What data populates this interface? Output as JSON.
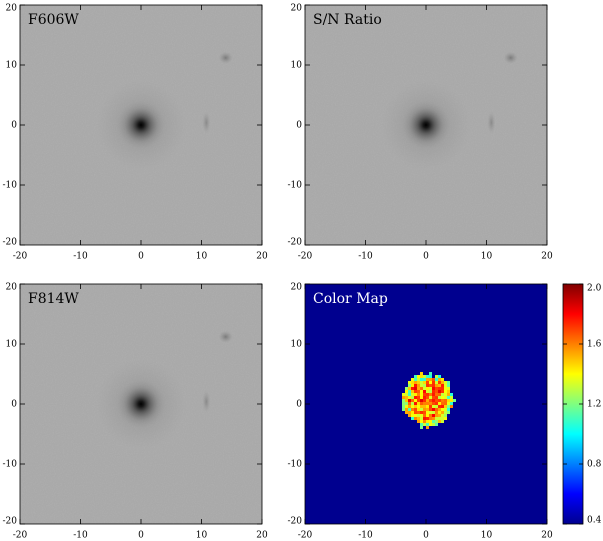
{
  "chart_data": [
    {
      "type": "image",
      "title": "F606W",
      "xlim": [
        -20,
        20
      ],
      "ylim": [
        -20,
        20
      ],
      "xticks": [
        -20,
        -10,
        0,
        10,
        20
      ],
      "yticks": [
        -20,
        -10,
        0,
        10,
        20
      ]
    },
    {
      "type": "image",
      "title": "S/N Ratio",
      "xlim": [
        -20,
        20
      ],
      "ylim": [
        -20,
        20
      ],
      "xticks": [
        -20,
        -10,
        0,
        10,
        20
      ],
      "yticks": [
        -20,
        -10,
        0,
        10,
        20
      ]
    },
    {
      "type": "image",
      "title": "F814W",
      "xlim": [
        -20,
        20
      ],
      "ylim": [
        -20,
        20
      ],
      "xticks": [
        -20,
        -10,
        0,
        10,
        20
      ],
      "yticks": [
        -20,
        -10,
        0,
        10,
        20
      ]
    },
    {
      "type": "colormap",
      "title": "Color Map",
      "xlim": [
        -20,
        20
      ],
      "ylim": [
        -20,
        20
      ],
      "xticks": [
        -20,
        -10,
        0,
        10,
        20
      ],
      "yticks": [
        -20,
        -10,
        0,
        10,
        20
      ],
      "colorbar": {
        "clim": [
          0.4,
          2
        ],
        "ticks": [
          0.4,
          0.8,
          1.2,
          1.6,
          {
            "value": 2,
            "label": "2.0"
          }
        ]
      }
    }
  ]
}
